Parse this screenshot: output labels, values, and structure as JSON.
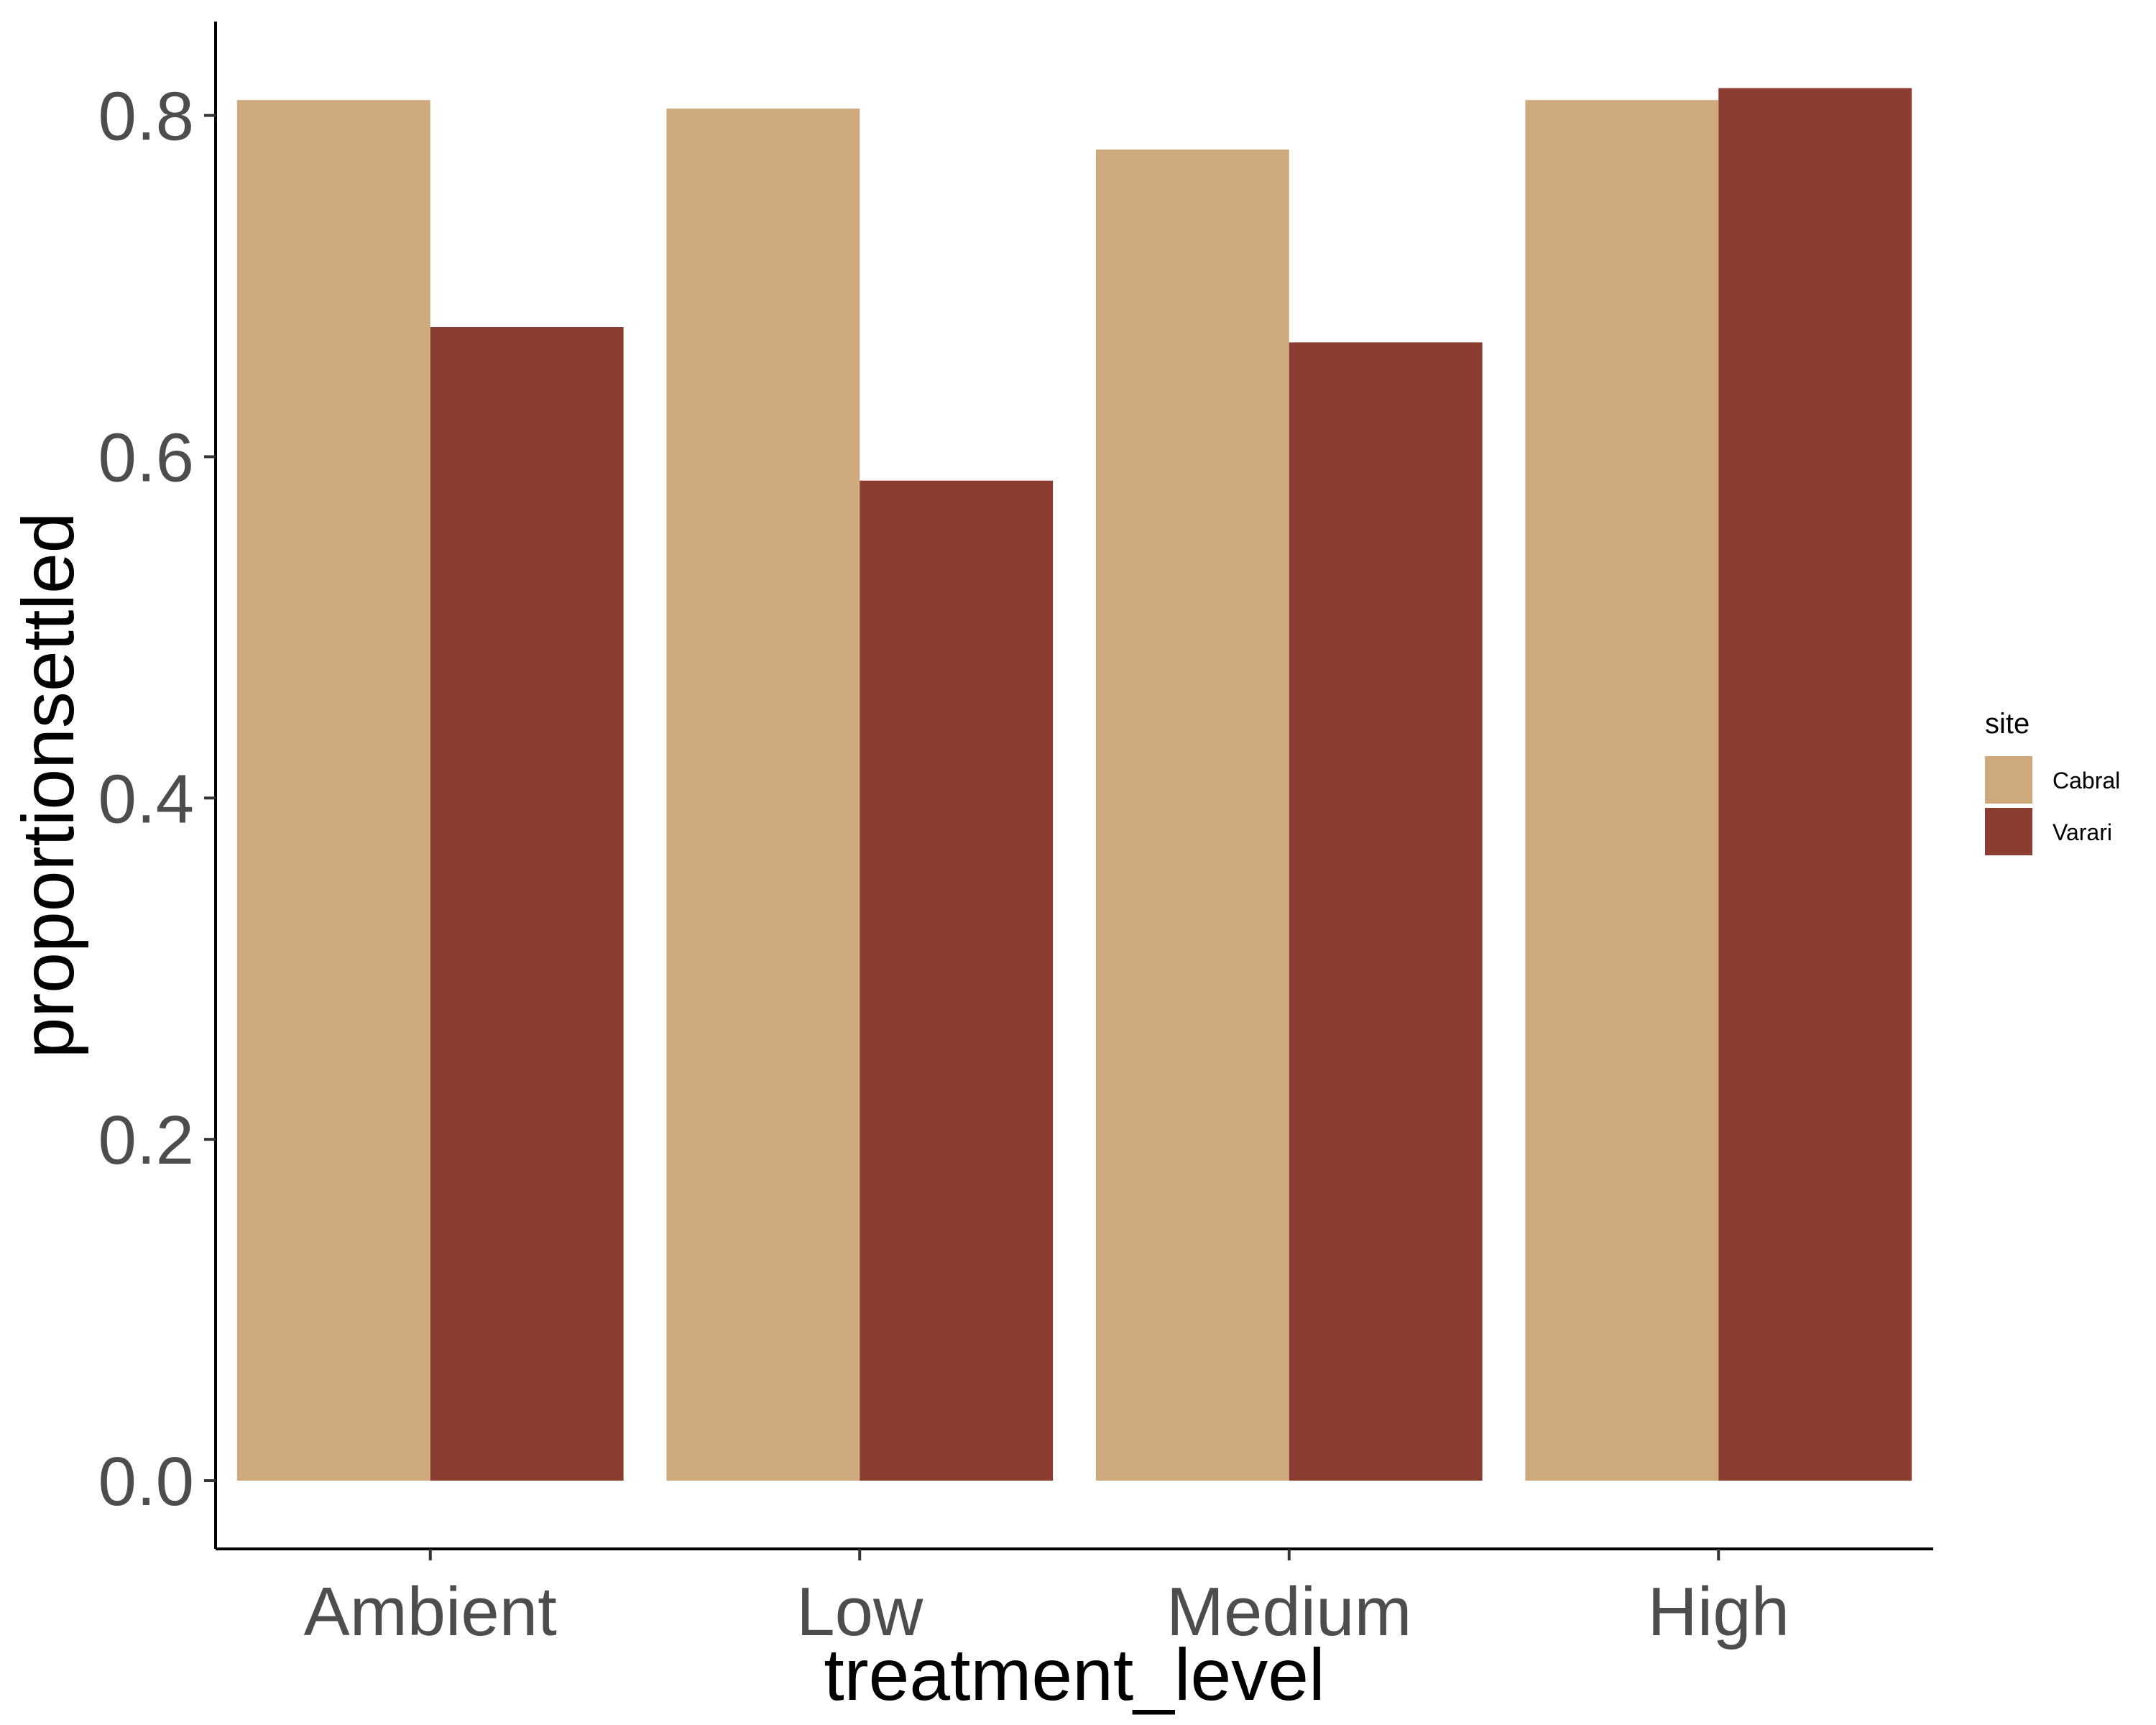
{
  "chart_data": {
    "type": "bar",
    "xlabel": "treatment_level",
    "ylabel": "proportionsettled",
    "categories": [
      "Ambient",
      "Low",
      "Medium",
      "High"
    ],
    "series": [
      {
        "name": "Cabral",
        "color": "#cda97d",
        "values": [
          0.809,
          0.804,
          0.78,
          0.809
        ]
      },
      {
        "name": "Varari",
        "color": "#8b3d32",
        "values": [
          0.676,
          0.586,
          0.667,
          0.816
        ]
      }
    ],
    "ylim": [
      -0.04,
      0.855
    ],
    "yticks": [
      0.0,
      0.2,
      0.4,
      0.6,
      0.8
    ],
    "ytick_labels": [
      "0.0",
      "0.2",
      "0.4",
      "0.6",
      "0.8"
    ],
    "legend": {
      "title": "site",
      "position": "right"
    },
    "grid": false
  }
}
